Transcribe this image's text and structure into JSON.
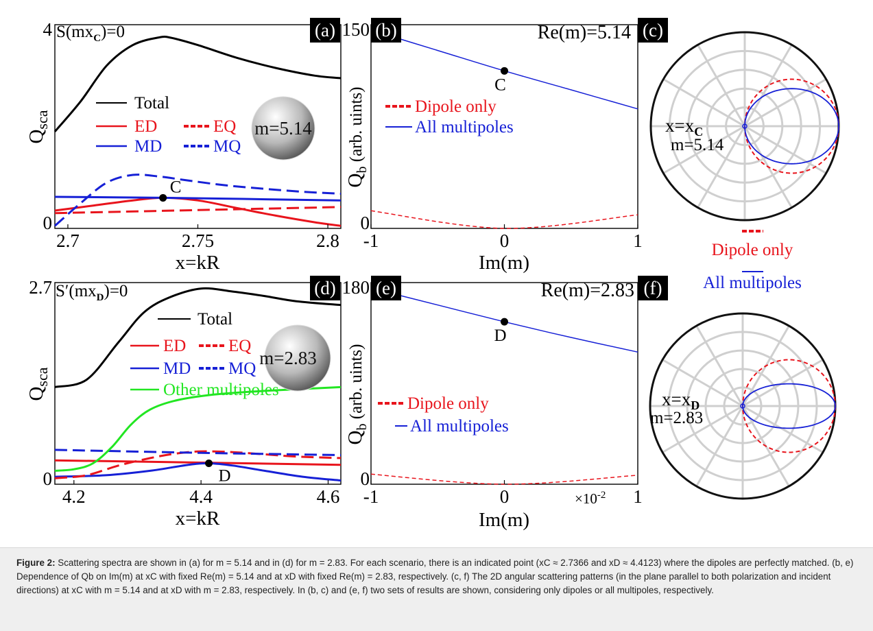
{
  "chart_data": [
    {
      "panel": "a",
      "panel_label": "(a)",
      "type": "line",
      "condition_label": "S(mx",
      "condition_sub": "C",
      "condition_tail": ")=0",
      "xlabel": "x=kR",
      "ylabel": "Q",
      "ylabel_sub": "sca",
      "xlim": [
        2.695,
        2.805
      ],
      "ylim": [
        0,
        4
      ],
      "xticks": [
        "2.7",
        "2.75",
        "2.8"
      ],
      "xtick_values": [
        2.7,
        2.75,
        2.8
      ],
      "yticks": [
        "0",
        "4"
      ],
      "ytick_values": [
        0,
        4
      ],
      "sphere_label": "m=5.14",
      "point": {
        "label": "C",
        "x": 2.7366,
        "y": 0.6
      },
      "legend": {
        "total": "Total",
        "ed": "ED",
        "eq": "EQ",
        "md": "MD",
        "mq": "MQ"
      },
      "series": [
        {
          "name": "Total",
          "color": "#000000",
          "dash": "solid",
          "x": [
            2.695,
            2.705,
            2.715,
            2.725,
            2.735,
            2.74,
            2.75,
            2.765,
            2.78,
            2.795,
            2.805
          ],
          "y": [
            1.9,
            2.5,
            3.2,
            3.6,
            3.75,
            3.74,
            3.6,
            3.35,
            3.15,
            3.0,
            2.95
          ]
        },
        {
          "name": "ED",
          "color": "#e8141c",
          "dash": "solid",
          "x": [
            2.695,
            2.71,
            2.725,
            2.7366,
            2.75,
            2.765,
            2.78,
            2.795,
            2.805
          ],
          "y": [
            0.35,
            0.45,
            0.55,
            0.6,
            0.55,
            0.4,
            0.25,
            0.12,
            0.05
          ]
        },
        {
          "name": "MD",
          "color": "#1620d6",
          "dash": "solid",
          "x": [
            2.695,
            2.7366,
            2.805
          ],
          "y": [
            0.62,
            0.6,
            0.55
          ]
        },
        {
          "name": "EQ",
          "color": "#e8141c",
          "dash": "dashed",
          "x": [
            2.695,
            2.75,
            2.805
          ],
          "y": [
            0.3,
            0.36,
            0.42
          ]
        },
        {
          "name": "MQ",
          "color": "#1620d6",
          "dash": "dashed",
          "x": [
            2.695,
            2.705,
            2.715,
            2.725,
            2.735,
            2.745,
            2.76,
            2.775,
            2.79,
            2.805
          ],
          "y": [
            0.05,
            0.5,
            0.9,
            1.05,
            1.02,
            0.95,
            0.85,
            0.78,
            0.72,
            0.68
          ]
        }
      ]
    },
    {
      "panel": "b",
      "panel_label": "(b)",
      "type": "line",
      "title": "Re(m)=5.14",
      "xlabel": "Im(m)",
      "ylabel": "Q",
      "ylabel_sub": "b",
      "ylabel_tail": " (arb. uints)",
      "xlim": [
        -1,
        1
      ],
      "ylim": [
        0,
        150
      ],
      "xticks": [
        "-1",
        "0",
        "1"
      ],
      "xtick_values": [
        -1,
        0,
        1
      ],
      "yticks": [
        "0",
        "150"
      ],
      "ytick_values": [
        0,
        150
      ],
      "point": {
        "label": "C",
        "x": 0,
        "y": 116
      },
      "legend": {
        "dipole": "Dipole only",
        "all": "All multipoles"
      },
      "series": [
        {
          "name": "All multipoles",
          "color": "#1620d6",
          "dash": "solid",
          "x": [
            -1,
            -0.5,
            0,
            0.5,
            1
          ],
          "y": [
            146,
            131,
            116,
            102,
            88
          ]
        },
        {
          "name": "Dipole only",
          "color": "#e8141c",
          "dash": "dashed",
          "x": [
            -1,
            0,
            1
          ],
          "y": [
            13,
            0,
            10
          ]
        }
      ]
    },
    {
      "panel": "c",
      "panel_label": "(c)",
      "type": "polar",
      "point_label": "x=x",
      "point_sub": "C",
      "m_label": "m=5.14",
      "series": [
        {
          "name": "Dipole only",
          "color": "#e8141c",
          "dash": "dashed",
          "shape": "circle"
        },
        {
          "name": "All multipoles",
          "color": "#1620d6",
          "dash": "solid",
          "shape": "forward-lobe"
        }
      ]
    },
    {
      "panel": "d",
      "panel_label": "(d)",
      "type": "line",
      "condition_label": "S′(mx",
      "condition_sub": "D",
      "condition_tail": ")=0",
      "xlabel": "x=kR",
      "ylabel": "Q",
      "ylabel_sub": "sca",
      "xlim": [
        4.17,
        4.62
      ],
      "ylim": [
        0,
        2.7
      ],
      "xticks": [
        "4.2",
        "4.4",
        "4.6"
      ],
      "xtick_values": [
        4.2,
        4.4,
        4.6
      ],
      "yticks": [
        "0",
        "2.7"
      ],
      "ytick_values": [
        0,
        2.7
      ],
      "sphere_label": "m=2.83",
      "point": {
        "label": "D",
        "x": 4.4123,
        "y": 0.28
      },
      "legend": {
        "total": "Total",
        "ed": "ED",
        "eq": "EQ",
        "md": "MD",
        "mq": "MQ",
        "other": "Other multipoles"
      },
      "series": [
        {
          "name": "Total",
          "color": "#000000",
          "dash": "solid",
          "x": [
            4.17,
            4.22,
            4.27,
            4.31,
            4.35,
            4.4,
            4.45,
            4.5,
            4.55,
            4.62
          ],
          "y": [
            1.3,
            1.4,
            1.9,
            2.3,
            2.5,
            2.62,
            2.58,
            2.52,
            2.45,
            2.4
          ]
        },
        {
          "name": "ED",
          "color": "#e8141c",
          "dash": "solid",
          "x": [
            4.17,
            4.62
          ],
          "y": [
            0.32,
            0.26
          ]
        },
        {
          "name": "MD",
          "color": "#1620d6",
          "dash": "solid",
          "x": [
            4.17,
            4.25,
            4.32,
            4.38,
            4.4123,
            4.45,
            4.5,
            4.56,
            4.62
          ],
          "y": [
            0.1,
            0.12,
            0.18,
            0.26,
            0.28,
            0.25,
            0.18,
            0.1,
            0.05
          ]
        },
        {
          "name": "EQ",
          "color": "#e8141c",
          "dash": "dashed",
          "x": [
            4.17,
            4.22,
            4.27,
            4.32,
            4.36,
            4.4,
            4.45,
            4.5,
            4.55,
            4.62
          ],
          "y": [
            0.08,
            0.12,
            0.25,
            0.35,
            0.41,
            0.44,
            0.43,
            0.4,
            0.37,
            0.35
          ]
        },
        {
          "name": "MQ",
          "color": "#1620d6",
          "dash": "dashed",
          "x": [
            4.17,
            4.4,
            4.62
          ],
          "y": [
            0.46,
            0.42,
            0.39
          ]
        },
        {
          "name": "Other multipoles",
          "color": "#22e622",
          "dash": "solid",
          "x": [
            4.17,
            4.2,
            4.23,
            4.26,
            4.29,
            4.32,
            4.36,
            4.42,
            4.5,
            4.62
          ],
          "y": [
            0.18,
            0.2,
            0.28,
            0.5,
            0.8,
            1.0,
            1.12,
            1.2,
            1.25,
            1.3
          ]
        }
      ]
    },
    {
      "panel": "e",
      "panel_label": "(e)",
      "type": "line",
      "title": "Re(m)=2.83",
      "xlabel": "Im(m)",
      "ylabel": "Q",
      "ylabel_sub": "b",
      "ylabel_tail": " (arb. uints)",
      "x_multiplier": "×10",
      "x_multiplier_exp": "-2",
      "xlim": [
        -1,
        1
      ],
      "ylim": [
        0,
        180
      ],
      "xticks": [
        "-1",
        "0",
        "1"
      ],
      "xtick_values": [
        -1,
        0,
        1
      ],
      "yticks": [
        "0",
        "180"
      ],
      "ytick_values": [
        0,
        180
      ],
      "point": {
        "label": "D",
        "x": 0,
        "y": 145
      },
      "legend": {
        "dipole": "Dipole only",
        "all": "All multipoles"
      },
      "series": [
        {
          "name": "All multipoles",
          "color": "#1620d6",
          "dash": "solid",
          "x": [
            -1,
            -0.5,
            0,
            0.5,
            1
          ],
          "y": [
            175,
            160,
            145,
            131,
            118
          ]
        },
        {
          "name": "Dipole only",
          "color": "#e8141c",
          "dash": "dashed",
          "x": [
            -1,
            0,
            1
          ],
          "y": [
            9,
            0,
            8
          ]
        }
      ]
    },
    {
      "panel": "f",
      "panel_label": "(f)",
      "type": "polar",
      "point_label": "x=x",
      "point_sub": "D",
      "m_label": "m=2.83",
      "series": [
        {
          "name": "Dipole only",
          "color": "#e8141c",
          "dash": "dashed",
          "shape": "circle"
        },
        {
          "name": "All multipoles",
          "color": "#1620d6",
          "dash": "solid",
          "shape": "narrow-lobe"
        }
      ]
    }
  ],
  "shared_legend": {
    "dipole": "Dipole only",
    "all": "All multipoles"
  },
  "caption": {
    "label": "Figure 2:",
    "text": " Scattering spectra are shown in (a) for m = 5.14 and in (d) for m = 2.83. For each scenario, there is an indicated point (xC ≈ 2.7366 and xD ≈ 4.4123) where the dipoles are perfectly matched. (b, e) Dependence of Qb on Im(m) at xC with fixed Re(m) = 5.14 and at xD with fixed Re(m) = 2.83, respectively. (c, f) The 2D angular scattering patterns (in the plane parallel to both polarization and incident directions) at xC with m = 5.14 and at xD with m = 2.83, respectively. In (b, c) and (e, f) two sets of results are shown, considering only dipoles or all multipoles, respectively."
  },
  "colors": {
    "red": "#e8141c",
    "blue": "#1620d6",
    "black": "#000000",
    "green": "#22e622",
    "grid": "#cfcfcf"
  }
}
